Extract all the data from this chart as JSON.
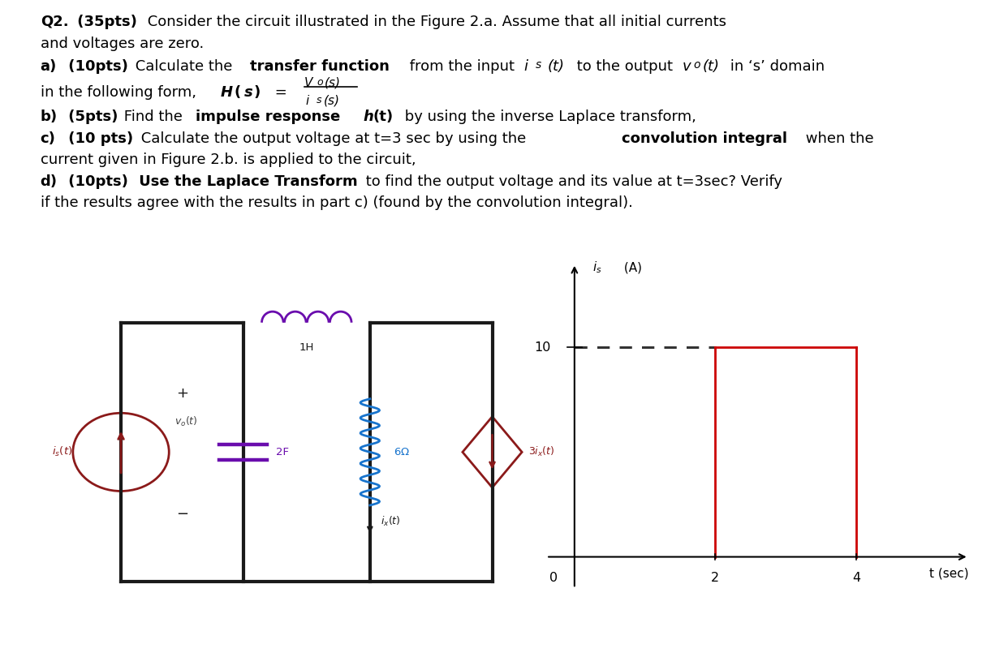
{
  "bg_color": "#ffffff",
  "title_line1": "Q2. (35pts) Consider the circuit illustrated in the Figure 2.a. Assume that all initial currents",
  "title_line2": "and voltages are zero.",
  "line_a1": "a) (10pts) Calculate the transfer function from the input i",
  "line_a2": "s(t) to the output v",
  "line_a3": "o(t) in ‘s’ domain",
  "line_a_form": "in the following form, H(s) =",
  "line_b": "b) (5pts) Find the impulse response h(t) by using the inverse Laplace transform,",
  "line_c1": "c) (10 pts) Calculate the output voltage at t=3 sec by using the convolution integral when the",
  "line_c2": "current given in Figure 2.b. is applied to the circuit,",
  "line_d1": "d) (10pts) Use the Laplace Transform to find the output voltage and its value at t=3sec? Verify",
  "line_d2": "if the results agree with the results in part c) (found by the convolution integral).",
  "circuit": {
    "dark": "#1a1a1a",
    "dark_red": "#8B1A1A",
    "blue": "#1874CD",
    "purple": "#6a0dad",
    "lw_wire": 3.0,
    "lw_comp": 2.2
  },
  "graph": {
    "pulse_color": "#cc0000",
    "dashed_color": "#333333",
    "axis_color": "#111111"
  }
}
